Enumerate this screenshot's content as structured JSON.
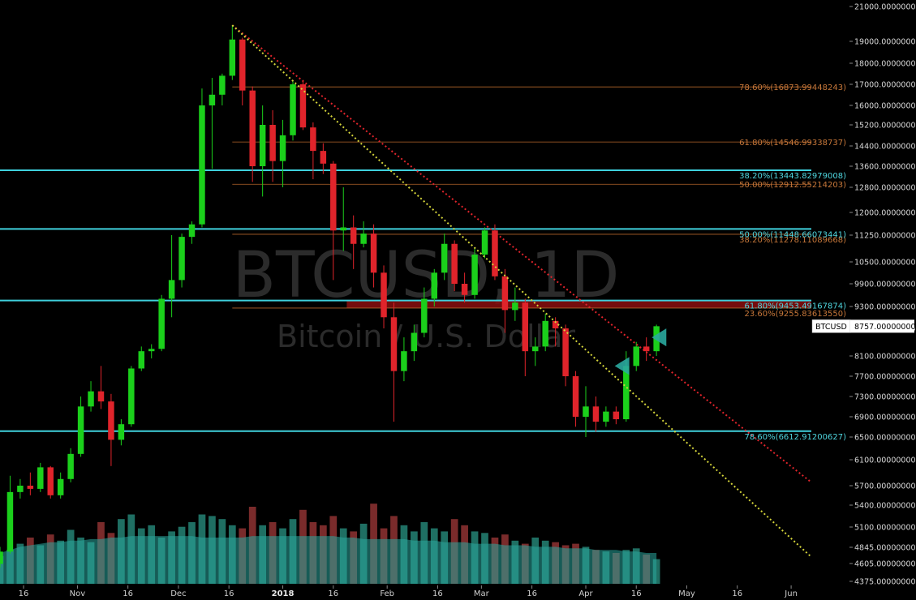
{
  "chart_data": {
    "type": "candlestick",
    "symbol": "BTCUSD, 1D",
    "subtitle": "Bitcoin / U.S. Dollar",
    "colors": {
      "up": "#1bd01b",
      "down": "#e0242b",
      "volume_up": "#1f6f63",
      "volume_down": "#7a2b2b",
      "volume_ma": "#2aa89f",
      "cyan_line": "#3fd0dc",
      "fib_orange": "#b4652a",
      "trend_red": "#e0242b",
      "trend_yellow": "#d4d43a",
      "zone_red": "#8a0f0f"
    },
    "y_axis": {
      "ticks": [
        "21000.00000000",
        "19000.00000000",
        "18000.00000000",
        "17000.00000000",
        "16000.00000000",
        "15200.00000000",
        "14400.00000000",
        "13600.00000000",
        "12800.00000000",
        "12000.00000000",
        "11250.00000000",
        "10500.00000000",
        "9900.00000000",
        "9300.00000000",
        "8700.00000000",
        "8100.00000000",
        "7700.00000000",
        "7300.00000000",
        "6900.00000000",
        "6500.00000000",
        "6100.00000000",
        "5700.00000000",
        "5400.00000000",
        "5100.00000000",
        "4845.00000000",
        "4605.00000000",
        "4375.00000000"
      ],
      "tick_values": [
        21000,
        19000,
        18000,
        17000,
        16000,
        15200,
        14400,
        13600,
        12800,
        12000,
        11250,
        10500,
        9900,
        9300,
        8700,
        8100,
        7700,
        7300,
        6900,
        6500,
        6100,
        5700,
        5400,
        5100,
        4845,
        4605,
        4375
      ],
      "tick_rows": [
        8,
        51,
        78,
        104,
        130,
        154,
        180,
        205,
        231,
        262,
        290,
        323,
        350,
        378,
        405,
        439,
        464,
        489,
        514,
        539,
        567,
        599,
        623,
        650,
        675,
        695,
        717
      ],
      "scale": "log"
    },
    "x_axis": {
      "ticks": [
        {
          "label": "16",
          "date": "2017-10-16"
        },
        {
          "label": "Nov",
          "date": "2017-11-01"
        },
        {
          "label": "16",
          "date": "2017-11-16"
        },
        {
          "label": "Dec",
          "date": "2017-12-01"
        },
        {
          "label": "16",
          "date": "2017-12-16"
        },
        {
          "label": "2018",
          "date": "2018-01-01",
          "bold": true
        },
        {
          "label": "16",
          "date": "2018-01-16"
        },
        {
          "label": "Feb",
          "date": "2018-02-01"
        },
        {
          "label": "16",
          "date": "2018-02-16"
        },
        {
          "label": "Mar",
          "date": "2018-03-01"
        },
        {
          "label": "16",
          "date": "2018-03-16"
        },
        {
          "label": "Apr",
          "date": "2018-04-01"
        },
        {
          "label": "16",
          "date": "2018-04-16"
        },
        {
          "label": "May",
          "date": "2018-05-01"
        },
        {
          "label": "16",
          "date": "2018-05-16"
        },
        {
          "label": "Jun",
          "date": "2018-06-01"
        }
      ],
      "start": "2017-10-09",
      "end": "2018-06-07"
    },
    "current_price": {
      "label": "BTCUSD",
      "value": "8757.00000000"
    },
    "fib_levels_cyan": [
      {
        "label": "38.20%(13443.82979008)",
        "value": 13443.83
      },
      {
        "label": "50.00%(11448.66073441)",
        "value": 11448.66
      },
      {
        "label": "61.80%(9453.49167874)",
        "value": 9453.49
      },
      {
        "label": "78.60%(6612.91200627)",
        "value": 6612.91
      }
    ],
    "fib_levels_orange": [
      {
        "label": "78.60%(16873.99448243)",
        "value": 16873.99
      },
      {
        "label": "61.80%(14546.99338737)",
        "value": 14546.99
      },
      {
        "label": "50.00%(12912.55214203)",
        "value": 12912.55
      },
      {
        "label": "38.20%(11278.11089668)",
        "value": 11278.11
      },
      {
        "label": "23.60%(9255.83613550)",
        "value": 9255.84
      }
    ],
    "orange_fib_start": "2017-12-17",
    "resistance_zone": {
      "from": "2018-01-20",
      "low": 9255.84,
      "high": 9453.49
    },
    "trendlines": [
      {
        "name": "red-trendline",
        "color": "red",
        "from": {
          "date": "2017-12-17",
          "price": 19900
        },
        "to": {
          "date": "2018-06-07",
          "price": 5750
        }
      },
      {
        "name": "yellow-trendline",
        "color": "yellow",
        "from": {
          "date": "2017-12-17",
          "price": 19900
        },
        "to": {
          "date": "2018-06-07",
          "price": 4700
        }
      }
    ],
    "markers": [
      {
        "date": "2018-04-12",
        "price": 7900,
        "shape": "arrow-left"
      },
      {
        "date": "2018-04-23",
        "price": 8500,
        "shape": "arrow-left"
      }
    ],
    "candles": [
      {
        "d": "2017-10-09",
        "o": 4600,
        "h": 4850,
        "l": 4550,
        "c": 4780
      },
      {
        "d": "2017-10-12",
        "o": 4780,
        "h": 5850,
        "l": 4750,
        "c": 5600
      },
      {
        "d": "2017-10-15",
        "o": 5600,
        "h": 5800,
        "l": 5500,
        "c": 5700
      },
      {
        "d": "2017-10-18",
        "o": 5700,
        "h": 5900,
        "l": 5550,
        "c": 5650
      },
      {
        "d": "2017-10-21",
        "o": 5650,
        "h": 6050,
        "l": 5600,
        "c": 5980
      },
      {
        "d": "2017-10-24",
        "o": 5980,
        "h": 6000,
        "l": 5500,
        "c": 5550
      },
      {
        "d": "2017-10-27",
        "o": 5550,
        "h": 5900,
        "l": 5500,
        "c": 5800
      },
      {
        "d": "2017-10-30",
        "o": 5800,
        "h": 6300,
        "l": 5750,
        "c": 6200
      },
      {
        "d": "2017-11-02",
        "o": 6200,
        "h": 7300,
        "l": 6150,
        "c": 7100
      },
      {
        "d": "2017-11-05",
        "o": 7100,
        "h": 7600,
        "l": 7000,
        "c": 7400
      },
      {
        "d": "2017-11-08",
        "o": 7400,
        "h": 7900,
        "l": 7050,
        "c": 7200
      },
      {
        "d": "2017-11-11",
        "o": 7200,
        "h": 7350,
        "l": 6000,
        "c": 6450
      },
      {
        "d": "2017-11-14",
        "o": 6450,
        "h": 6850,
        "l": 6350,
        "c": 6750
      },
      {
        "d": "2017-11-17",
        "o": 6750,
        "h": 7900,
        "l": 6700,
        "c": 7850
      },
      {
        "d": "2017-11-20",
        "o": 7850,
        "h": 8300,
        "l": 7800,
        "c": 8200
      },
      {
        "d": "2017-11-23",
        "o": 8200,
        "h": 8350,
        "l": 8050,
        "c": 8250
      },
      {
        "d": "2017-11-26",
        "o": 8250,
        "h": 9600,
        "l": 8200,
        "c": 9500
      },
      {
        "d": "2017-11-29",
        "o": 9500,
        "h": 11250,
        "l": 9000,
        "c": 10000
      },
      {
        "d": "2017-12-02",
        "o": 10000,
        "h": 11300,
        "l": 9800,
        "c": 11200
      },
      {
        "d": "2017-12-05",
        "o": 11200,
        "h": 11700,
        "l": 11000,
        "c": 11600
      },
      {
        "d": "2017-12-08",
        "o": 11600,
        "h": 16800,
        "l": 11500,
        "c": 16000
      },
      {
        "d": "2017-12-11",
        "o": 16000,
        "h": 17300,
        "l": 13500,
        "c": 16500
      },
      {
        "d": "2017-12-14",
        "o": 16500,
        "h": 17500,
        "l": 16000,
        "c": 17400
      },
      {
        "d": "2017-12-17",
        "o": 17400,
        "h": 19900,
        "l": 17200,
        "c": 19100
      },
      {
        "d": "2017-12-20",
        "o": 19100,
        "h": 19200,
        "l": 16000,
        "c": 16700
      },
      {
        "d": "2017-12-23",
        "o": 16700,
        "h": 16900,
        "l": 13000,
        "c": 13600
      },
      {
        "d": "2017-12-26",
        "o": 13600,
        "h": 16000,
        "l": 12500,
        "c": 15200
      },
      {
        "d": "2017-12-29",
        "o": 15200,
        "h": 15800,
        "l": 13000,
        "c": 13800
      },
      {
        "d": "2018-01-01",
        "o": 13800,
        "h": 15400,
        "l": 12800,
        "c": 14800
      },
      {
        "d": "2018-01-04",
        "o": 14800,
        "h": 17200,
        "l": 14600,
        "c": 17000
      },
      {
        "d": "2018-01-07",
        "o": 17000,
        "h": 17200,
        "l": 15000,
        "c": 15100
      },
      {
        "d": "2018-01-10",
        "o": 15100,
        "h": 15300,
        "l": 13100,
        "c": 14200
      },
      {
        "d": "2018-01-13",
        "o": 14200,
        "h": 14500,
        "l": 13300,
        "c": 13700
      },
      {
        "d": "2018-01-16",
        "o": 13700,
        "h": 13800,
        "l": 10000,
        "c": 11400
      },
      {
        "d": "2018-01-19",
        "o": 11400,
        "h": 12800,
        "l": 10800,
        "c": 11500
      },
      {
        "d": "2018-01-22",
        "o": 11500,
        "h": 11900,
        "l": 10300,
        "c": 11000
      },
      {
        "d": "2018-01-25",
        "o": 11000,
        "h": 11700,
        "l": 10900,
        "c": 11300
      },
      {
        "d": "2018-01-28",
        "o": 11300,
        "h": 11600,
        "l": 9800,
        "c": 10200
      },
      {
        "d": "2018-01-31",
        "o": 10200,
        "h": 10400,
        "l": 8700,
        "c": 9000
      },
      {
        "d": "2018-02-03",
        "o": 9000,
        "h": 9400,
        "l": 6800,
        "c": 7800
      },
      {
        "d": "2018-02-06",
        "o": 7800,
        "h": 8500,
        "l": 7600,
        "c": 8200
      },
      {
        "d": "2018-02-09",
        "o": 8200,
        "h": 8800,
        "l": 8000,
        "c": 8600
      },
      {
        "d": "2018-02-12",
        "o": 8600,
        "h": 9800,
        "l": 8500,
        "c": 9500
      },
      {
        "d": "2018-02-15",
        "o": 9500,
        "h": 10300,
        "l": 9300,
        "c": 10200
      },
      {
        "d": "2018-02-18",
        "o": 10200,
        "h": 11300,
        "l": 10000,
        "c": 11000
      },
      {
        "d": "2018-02-21",
        "o": 11000,
        "h": 11100,
        "l": 9700,
        "c": 9900
      },
      {
        "d": "2018-02-24",
        "o": 9900,
        "h": 10200,
        "l": 9400,
        "c": 9600
      },
      {
        "d": "2018-02-27",
        "o": 9600,
        "h": 10900,
        "l": 9500,
        "c": 10700
      },
      {
        "d": "2018-03-02",
        "o": 10700,
        "h": 11500,
        "l": 10600,
        "c": 11400
      },
      {
        "d": "2018-03-05",
        "o": 11400,
        "h": 11600,
        "l": 10000,
        "c": 10100
      },
      {
        "d": "2018-03-08",
        "o": 10100,
        "h": 10300,
        "l": 8600,
        "c": 9200
      },
      {
        "d": "2018-03-11",
        "o": 9200,
        "h": 9800,
        "l": 8900,
        "c": 9400
      },
      {
        "d": "2018-03-14",
        "o": 9400,
        "h": 9500,
        "l": 7700,
        "c": 8200
      },
      {
        "d": "2018-03-17",
        "o": 8200,
        "h": 8500,
        "l": 7900,
        "c": 8300
      },
      {
        "d": "2018-03-20",
        "o": 8300,
        "h": 9100,
        "l": 8200,
        "c": 8900
      },
      {
        "d": "2018-03-23",
        "o": 8900,
        "h": 9000,
        "l": 8300,
        "c": 8700
      },
      {
        "d": "2018-03-26",
        "o": 8700,
        "h": 8800,
        "l": 7500,
        "c": 7700
      },
      {
        "d": "2018-03-29",
        "o": 7700,
        "h": 7800,
        "l": 6700,
        "c": 6900
      },
      {
        "d": "2018-04-01",
        "o": 6900,
        "h": 7500,
        "l": 6500,
        "c": 7100
      },
      {
        "d": "2018-04-04",
        "o": 7100,
        "h": 7300,
        "l": 6600,
        "c": 6800
      },
      {
        "d": "2018-04-07",
        "o": 6800,
        "h": 7100,
        "l": 6700,
        "c": 7000
      },
      {
        "d": "2018-04-10",
        "o": 7000,
        "h": 7100,
        "l": 6750,
        "c": 6850
      },
      {
        "d": "2018-04-13",
        "o": 6850,
        "h": 8200,
        "l": 6800,
        "c": 7900
      },
      {
        "d": "2018-04-16",
        "o": 7900,
        "h": 8400,
        "l": 7800,
        "c": 8300
      },
      {
        "d": "2018-04-19",
        "o": 8300,
        "h": 8500,
        "l": 8000,
        "c": 8200
      },
      {
        "d": "2018-04-22",
        "o": 8200,
        "h": 8800,
        "l": 8100,
        "c": 8757
      }
    ],
    "volume_scale": {
      "max": 100
    },
    "volumes": [
      18,
      22,
      26,
      30,
      25,
      32,
      28,
      35,
      30,
      27,
      40,
      33,
      42,
      45,
      36,
      38,
      30,
      34,
      37,
      40,
      45,
      44,
      42,
      38,
      36,
      50,
      38,
      40,
      36,
      42,
      48,
      40,
      38,
      44,
      36,
      34,
      39,
      52,
      36,
      44,
      38,
      34,
      40,
      36,
      34,
      42,
      38,
      34,
      33,
      30,
      32,
      28,
      26,
      30,
      28,
      27,
      25,
      26,
      24,
      22,
      21,
      20,
      22,
      23,
      19,
      16
    ],
    "volume_ma": [
      20,
      22,
      24,
      25,
      26,
      27,
      27,
      28,
      28,
      29,
      29,
      30,
      30,
      31,
      31,
      31,
      31,
      31,
      31,
      31,
      30,
      30,
      30,
      30,
      30,
      31,
      31,
      31,
      31,
      31,
      31,
      31,
      31,
      31,
      30,
      30,
      29,
      29,
      29,
      29,
      29,
      28,
      28,
      28,
      27,
      27,
      27,
      26,
      26,
      26,
      25,
      25,
      25,
      24,
      24,
      24,
      23,
      23,
      23,
      22,
      22,
      22,
      21,
      21,
      20,
      20
    ]
  }
}
